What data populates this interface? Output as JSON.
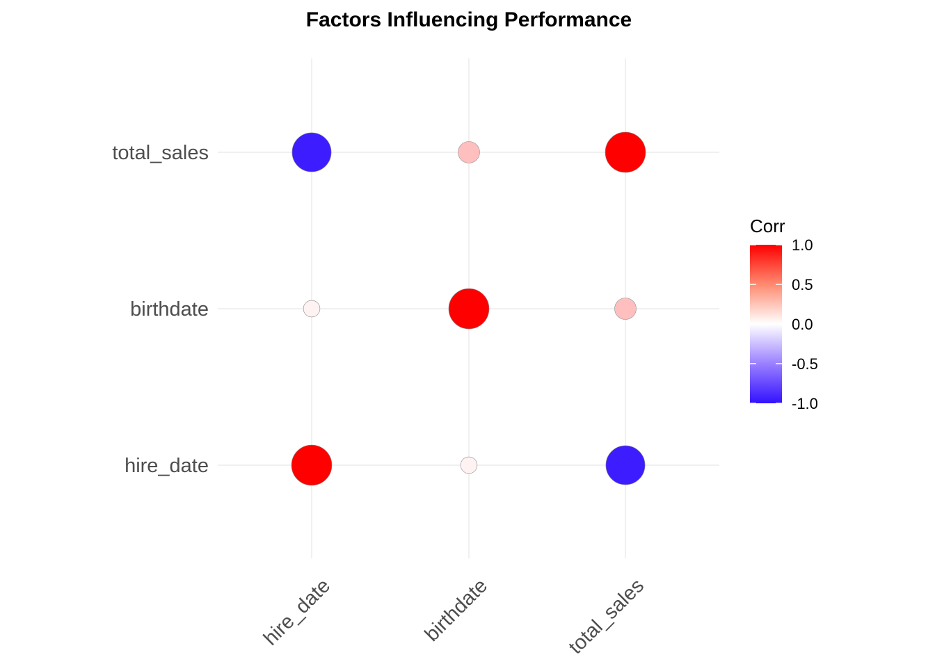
{
  "chart_data": {
    "type": "scatter",
    "subtype": "correlation-matrix",
    "title": "Factors Influencing Performance",
    "xlabel": "",
    "ylabel": "",
    "x_categories": [
      "hire_date",
      "birthdate",
      "total_sales"
    ],
    "y_categories": [
      "hire_date",
      "birthdate",
      "total_sales"
    ],
    "matrix": [
      {
        "x": "hire_date",
        "y": "hire_date",
        "value": 1.0
      },
      {
        "x": "birthdate",
        "y": "hire_date",
        "value": 0.05
      },
      {
        "x": "total_sales",
        "y": "hire_date",
        "value": -0.95
      },
      {
        "x": "hire_date",
        "y": "birthdate",
        "value": 0.05
      },
      {
        "x": "birthdate",
        "y": "birthdate",
        "value": 1.0
      },
      {
        "x": "total_sales",
        "y": "birthdate",
        "value": 0.25
      },
      {
        "x": "hire_date",
        "y": "total_sales",
        "value": -0.95
      },
      {
        "x": "birthdate",
        "y": "total_sales",
        "value": 0.25
      },
      {
        "x": "total_sales",
        "y": "total_sales",
        "value": 1.0
      }
    ],
    "legend": {
      "title": "Corr",
      "position": "right",
      "ticks": [
        {
          "value": 1.0,
          "label": "1.0"
        },
        {
          "value": 0.5,
          "label": "0.5"
        },
        {
          "value": 0.0,
          "label": "0.0"
        },
        {
          "value": -0.5,
          "label": "-0.5"
        },
        {
          "value": -1.0,
          "label": "-1.0"
        }
      ],
      "range": [
        -1,
        1
      ]
    },
    "colors": {
      "low": "#3311ff",
      "mid": "#ffffff",
      "high": "#ff0000",
      "grid": "#ebebeb",
      "text": "#4d4d4d"
    },
    "grid": true
  }
}
